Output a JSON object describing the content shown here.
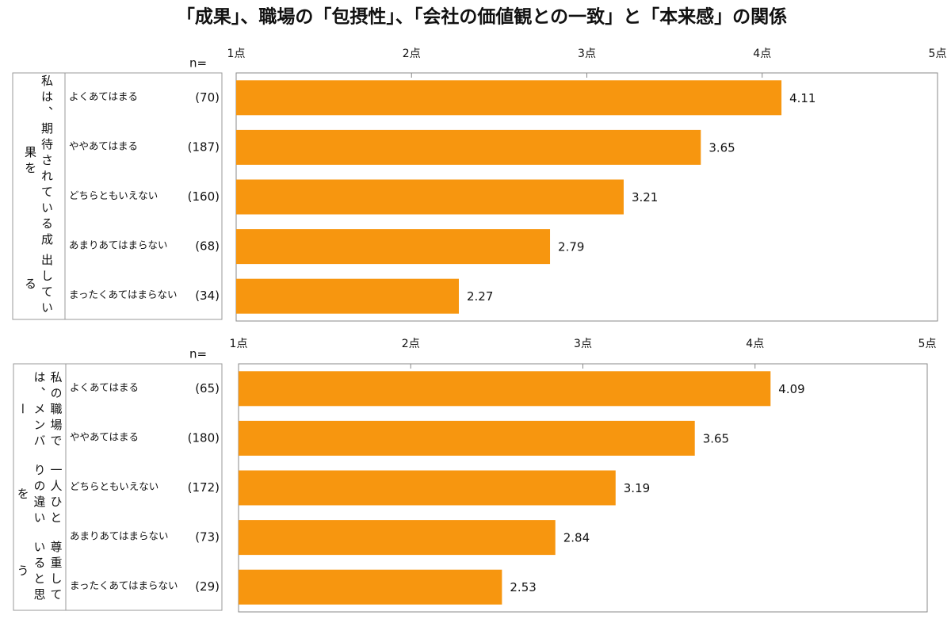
{
  "title": "「成果」、職場の「包摂性」、「会社の価値観との一致」と「本来感」の関係",
  "chart_data": [
    {
      "type": "bar",
      "orientation": "horizontal",
      "group_label": [
        "私は、期待されている成果を",
        "出している"
      ],
      "n_header": "n=",
      "categories": [
        "よくあてはまる",
        "ややあてはまる",
        "どちらともいえない",
        "あまりあてはまらない",
        "まったくあてはまらない"
      ],
      "n_labels": [
        "(70)",
        "(187)",
        "(160)",
        "(68)",
        "(34)"
      ],
      "values": [
        4.11,
        3.65,
        3.21,
        2.79,
        2.27
      ],
      "color": "#f7960f",
      "xlim": [
        1,
        5
      ],
      "xticks": [
        {
          "value": 1,
          "label": "1点"
        },
        {
          "value": 2,
          "label": "2点"
        },
        {
          "value": 3,
          "label": "3点"
        },
        {
          "value": 4,
          "label": "4点"
        },
        {
          "value": 5,
          "label": "5点"
        }
      ]
    },
    {
      "type": "bar",
      "orientation": "horizontal",
      "group_label": [
        "私の職場では、メンバー",
        "一人ひとりの違いを",
        "尊重していると思う"
      ],
      "n_header": "n=",
      "categories": [
        "よくあてはまる",
        "ややあてはまる",
        "どちらともいえない",
        "あまりあてはまらない",
        "まったくあてはまらない"
      ],
      "n_labels": [
        "(65)",
        "(180)",
        "(172)",
        "(73)",
        "(29)"
      ],
      "values": [
        4.09,
        3.65,
        3.19,
        2.84,
        2.53
      ],
      "color": "#f7960f",
      "xlim": [
        1,
        5
      ],
      "xticks": [
        {
          "value": 1,
          "label": "1点"
        },
        {
          "value": 2,
          "label": "2点"
        },
        {
          "value": 3,
          "label": "3点"
        },
        {
          "value": 4,
          "label": "4点"
        },
        {
          "value": 5,
          "label": "5点"
        }
      ]
    }
  ]
}
